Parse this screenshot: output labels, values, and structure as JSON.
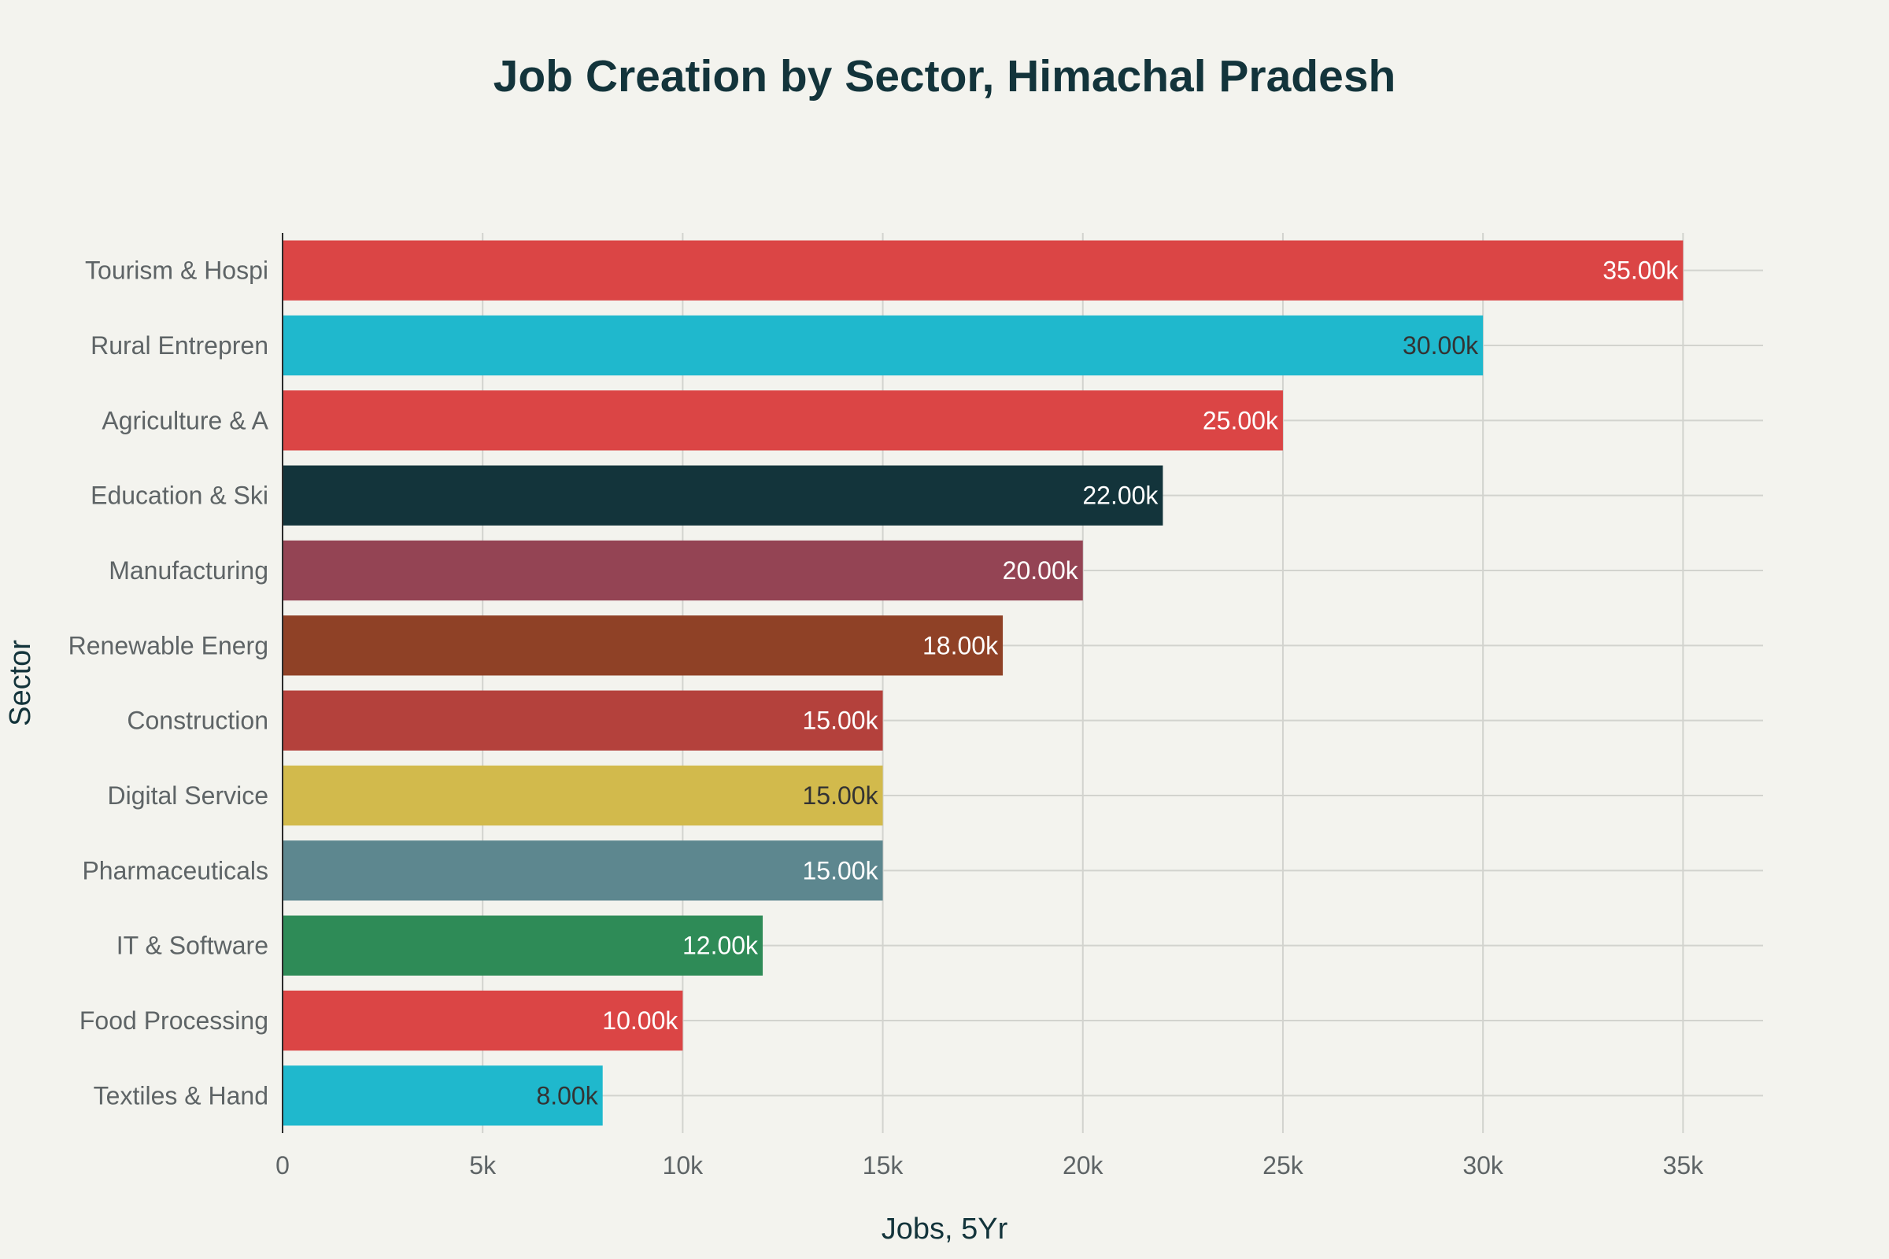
{
  "chart_data": {
    "type": "bar",
    "orientation": "horizontal",
    "title": "Job Creation by Sector, Himachal Pradesh",
    "xlabel": "Jobs, 5Yr",
    "ylabel": "Sector",
    "xlim": [
      0,
      37000
    ],
    "x_ticks": [
      0,
      5000,
      10000,
      15000,
      20000,
      25000,
      30000,
      35000
    ],
    "x_tick_labels": [
      "0",
      "5k",
      "10k",
      "15k",
      "20k",
      "25k",
      "30k",
      "35k"
    ],
    "grid": true,
    "categories": [
      "Tourism & Hospi",
      "Rural Entrepren",
      "Agriculture & A",
      "Education & Ski",
      "Manufacturing",
      "Renewable Energ",
      "Construction",
      "Digital Service",
      "Pharmaceuticals",
      "IT & Software",
      "Food Processing",
      "Textiles & Hand"
    ],
    "values": [
      35000,
      30000,
      25000,
      22000,
      20000,
      18000,
      15000,
      15000,
      15000,
      12000,
      10000,
      8000
    ],
    "data_labels": [
      "35.00k",
      "30.00k",
      "25.00k",
      "22.00k",
      "20.00k",
      "18.00k",
      "15.00k",
      "15.00k",
      "15.00k",
      "12.00k",
      "10.00k",
      "8.00k"
    ],
    "bar_colors": [
      "#DB4545",
      "#1FB8CD",
      "#DB4545",
      "#13343B",
      "#944454",
      "#8F4126",
      "#B4413C",
      "#D2BA4C",
      "#5D878F",
      "#2E8B57",
      "#DB4545",
      "#1FB8CD"
    ],
    "label_colors": [
      "#FFFFFF",
      "#333333",
      "#FFFFFF",
      "#FFFFFF",
      "#FFFFFF",
      "#FFFFFF",
      "#FFFFFF",
      "#333333",
      "#FFFFFF",
      "#FFFFFF",
      "#FFFFFF",
      "#333333"
    ]
  }
}
